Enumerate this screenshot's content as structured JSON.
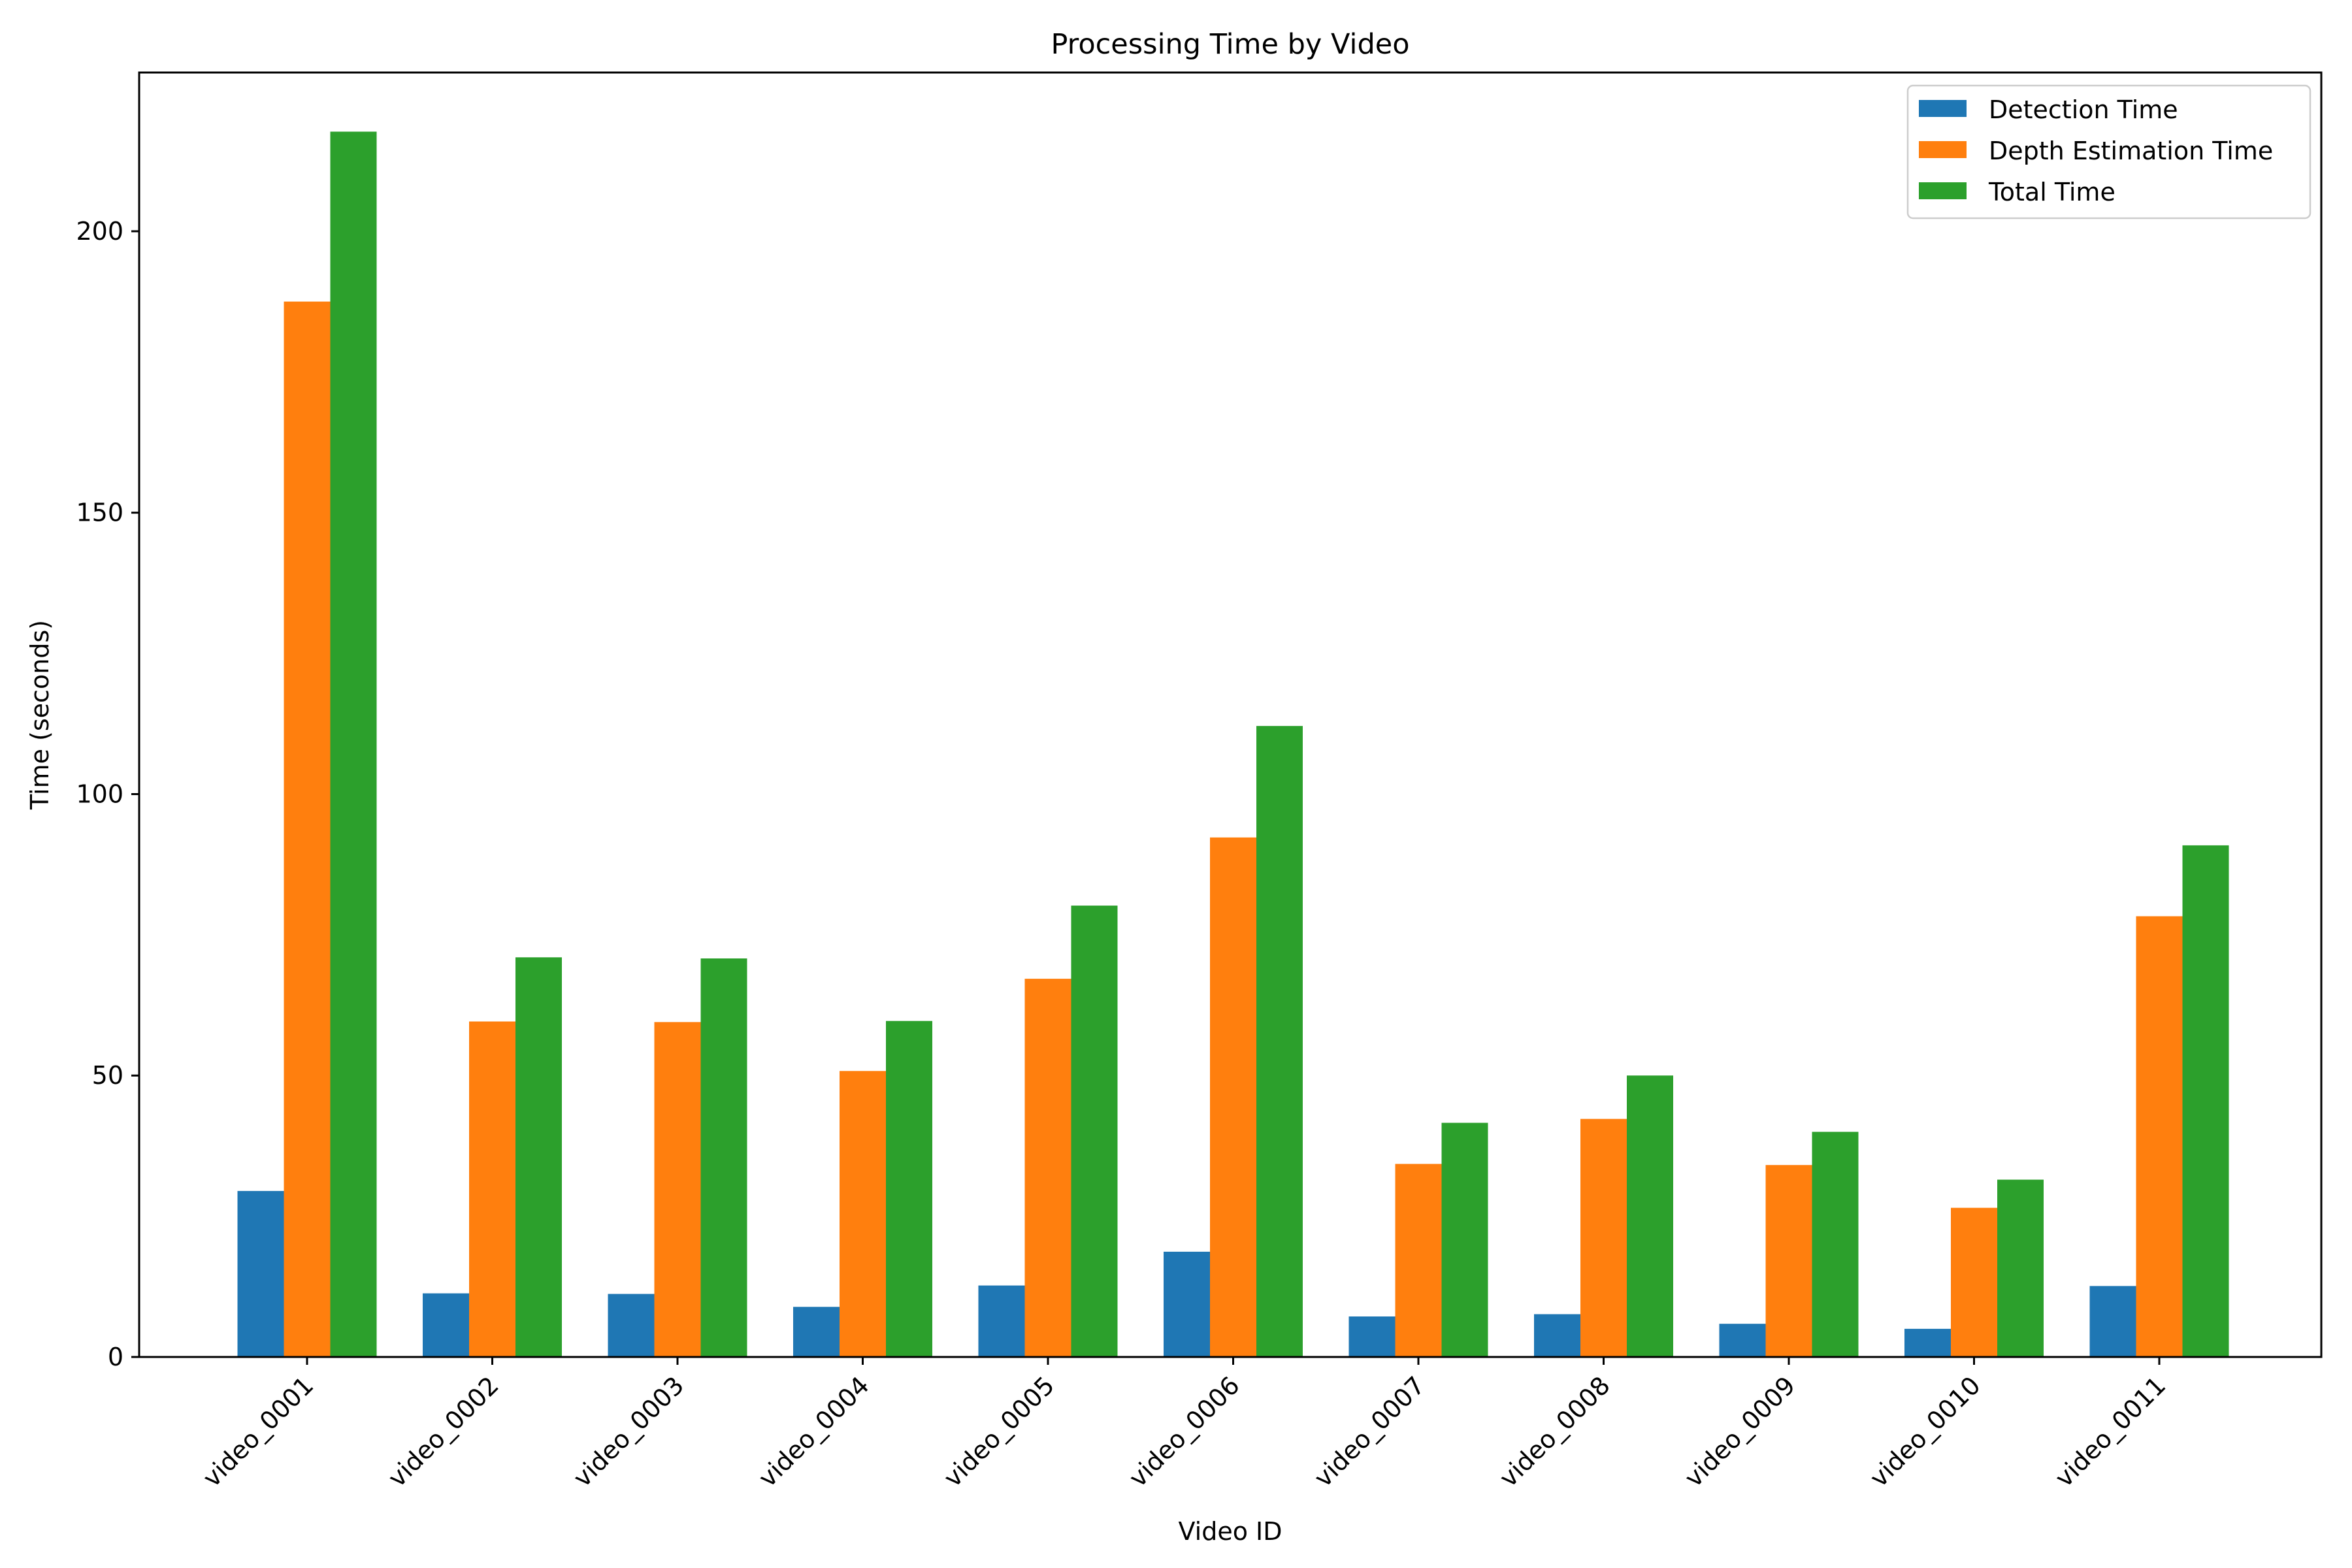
{
  "chart_data": {
    "type": "bar",
    "title": "Processing Time by Video",
    "xlabel": "Video ID",
    "ylabel": "Time (seconds)",
    "categories": [
      "video_0001",
      "video_0002",
      "video_0003",
      "video_0004",
      "video_0005",
      "video_0006",
      "video_0007",
      "video_0008",
      "video_0009",
      "video_0010",
      "video_0011"
    ],
    "series": [
      {
        "name": "Detection Time",
        "color": "#1f77b4",
        "values": [
          29.5,
          11.3,
          11.2,
          8.9,
          12.7,
          18.7,
          7.2,
          7.6,
          5.9,
          5.0,
          12.6
        ]
      },
      {
        "name": "Depth Estimation Time",
        "color": "#ff7f0e",
        "values": [
          187.5,
          59.6,
          59.5,
          50.8,
          67.2,
          92.3,
          34.3,
          42.3,
          34.1,
          26.5,
          78.3
        ]
      },
      {
        "name": "Total Time",
        "color": "#2ca02c",
        "values": [
          217.7,
          71.0,
          70.8,
          59.7,
          80.2,
          112.1,
          41.6,
          50.0,
          40.0,
          31.5,
          90.9
        ]
      }
    ],
    "ylim": [
      0,
      228.2
    ],
    "yticks": [
      0,
      50,
      100,
      150,
      200
    ],
    "grid": false,
    "legend_position": "top-right"
  }
}
